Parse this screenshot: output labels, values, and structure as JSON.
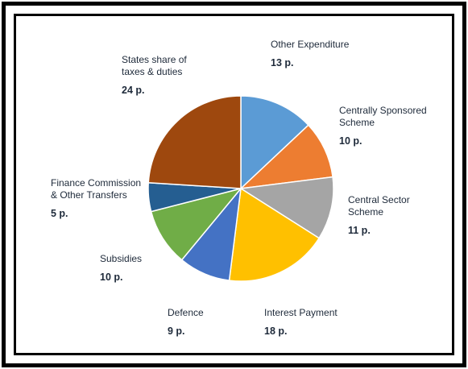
{
  "chart_data": {
    "type": "pie",
    "start_angle_deg": 0,
    "direction": "clockwise",
    "slices": [
      {
        "name": [
          "Other Expenditure"
        ],
        "value_label": "13 p.",
        "value": 13,
        "color": "#5b9bd5"
      },
      {
        "name": [
          "Centrally Sponsored",
          "Scheme"
        ],
        "value_label": "10 p.",
        "value": 10,
        "color": "#ed7d31"
      },
      {
        "name": [
          "Central Sector",
          "Scheme"
        ],
        "value_label": "11 p.",
        "value": 11,
        "color": "#a5a5a5"
      },
      {
        "name": [
          "Interest Payment"
        ],
        "value_label": "18 p.",
        "value": 18,
        "color": "#ffc000"
      },
      {
        "name": [
          "Defence"
        ],
        "value_label": "9 p.",
        "value": 9,
        "color": "#4472c4"
      },
      {
        "name": [
          "Subsidies"
        ],
        "value_label": "10 p.",
        "value": 10,
        "color": "#70ad47"
      },
      {
        "name": [
          "Finance Commission",
          "& Other Transfers"
        ],
        "value_label": "5 p.",
        "value": 5,
        "color": "#255e91"
      },
      {
        "name": [
          "States share of",
          "taxes & duties"
        ],
        "value_label": "24 p.",
        "value": 24,
        "color": "#9e480e"
      }
    ]
  }
}
